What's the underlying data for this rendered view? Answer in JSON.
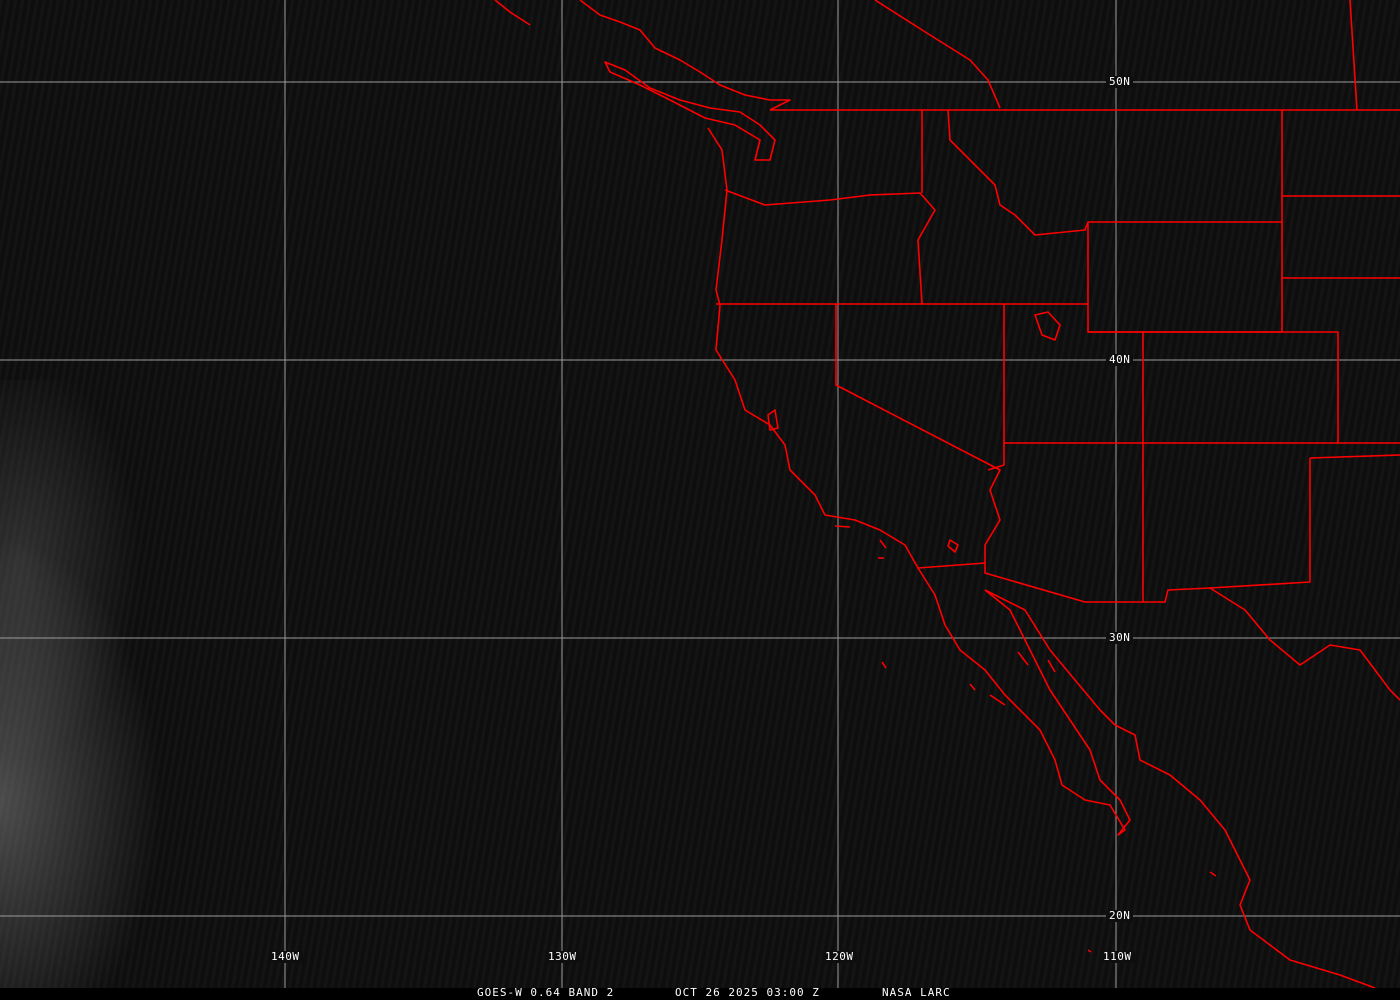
{
  "map": {
    "coastline_color": "#ff0000",
    "grid_color": "#9a9a9a",
    "latitude_labels": [
      "50N",
      "40N",
      "30N",
      "20N"
    ],
    "longitude_labels": [
      "140W",
      "130W",
      "120W",
      "110W"
    ]
  },
  "caption": {
    "satellite": "GOES-W 0.64 BAND 2",
    "datetime": "OCT 26 2025 03:00 Z",
    "source": "NASA LARC"
  }
}
